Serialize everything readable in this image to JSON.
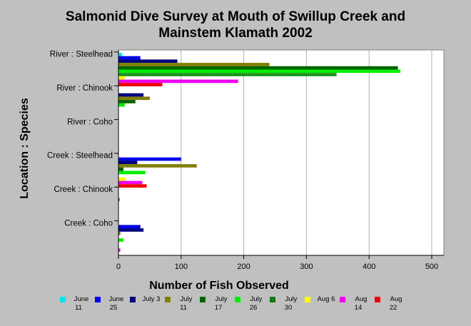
{
  "chart_data": {
    "type": "bar",
    "orientation": "horizontal",
    "title": "Salmonid Dive Survey at Mouth of Swillup Creek and Mainstem Klamath 2002",
    "title_lines": [
      "Salmonid Dive Survey at Mouth of Swillup Creek and",
      "Mainstem Klamath 2002"
    ],
    "xlabel": "Number of Fish Observed",
    "ylabel": "Location : Species",
    "xlim": [
      0,
      500
    ],
    "xticks": [
      0,
      100,
      200,
      300,
      400,
      500
    ],
    "grid": true,
    "legend_position": "bottom",
    "categories": [
      "River : Steelhead",
      "River : Chinook",
      "River : Coho",
      "Creek : Steelhead",
      "Creek : Chinook",
      "Creek : Coho"
    ],
    "series": [
      {
        "name": "June 11",
        "color": "#00e5ee",
        "values": [
          6,
          0,
          0,
          0,
          0,
          0
        ]
      },
      {
        "name": "June 25",
        "color": "#0000ee",
        "values": [
          35,
          0,
          0,
          100,
          0,
          35
        ]
      },
      {
        "name": "July 3",
        "color": "#000080",
        "values": [
          94,
          40,
          0,
          30,
          0,
          40
        ]
      },
      {
        "name": "July 11",
        "color": "#808000",
        "values": [
          241,
          50,
          0,
          125,
          2,
          3
        ]
      },
      {
        "name": "July 17",
        "color": "#006400",
        "values": [
          446,
          27,
          0,
          8,
          0,
          0
        ]
      },
      {
        "name": "July 26",
        "color": "#00ee00",
        "values": [
          450,
          10,
          0,
          43,
          0,
          8
        ]
      },
      {
        "name": "July 30",
        "color": "#22aa22",
        "pattern": "hatch",
        "values": [
          348,
          0,
          0,
          0,
          0,
          0
        ]
      },
      {
        "name": "Aug 6",
        "color": "#ffff00",
        "values": [
          10,
          0,
          0,
          12,
          0,
          0
        ]
      },
      {
        "name": "Aug 14",
        "color": "#ee00ee",
        "values": [
          191,
          0,
          0,
          38,
          0,
          3
        ]
      },
      {
        "name": "Aug 22",
        "color": "#ee0000",
        "values": [
          70,
          0,
          0,
          45,
          0,
          0
        ]
      }
    ]
  }
}
